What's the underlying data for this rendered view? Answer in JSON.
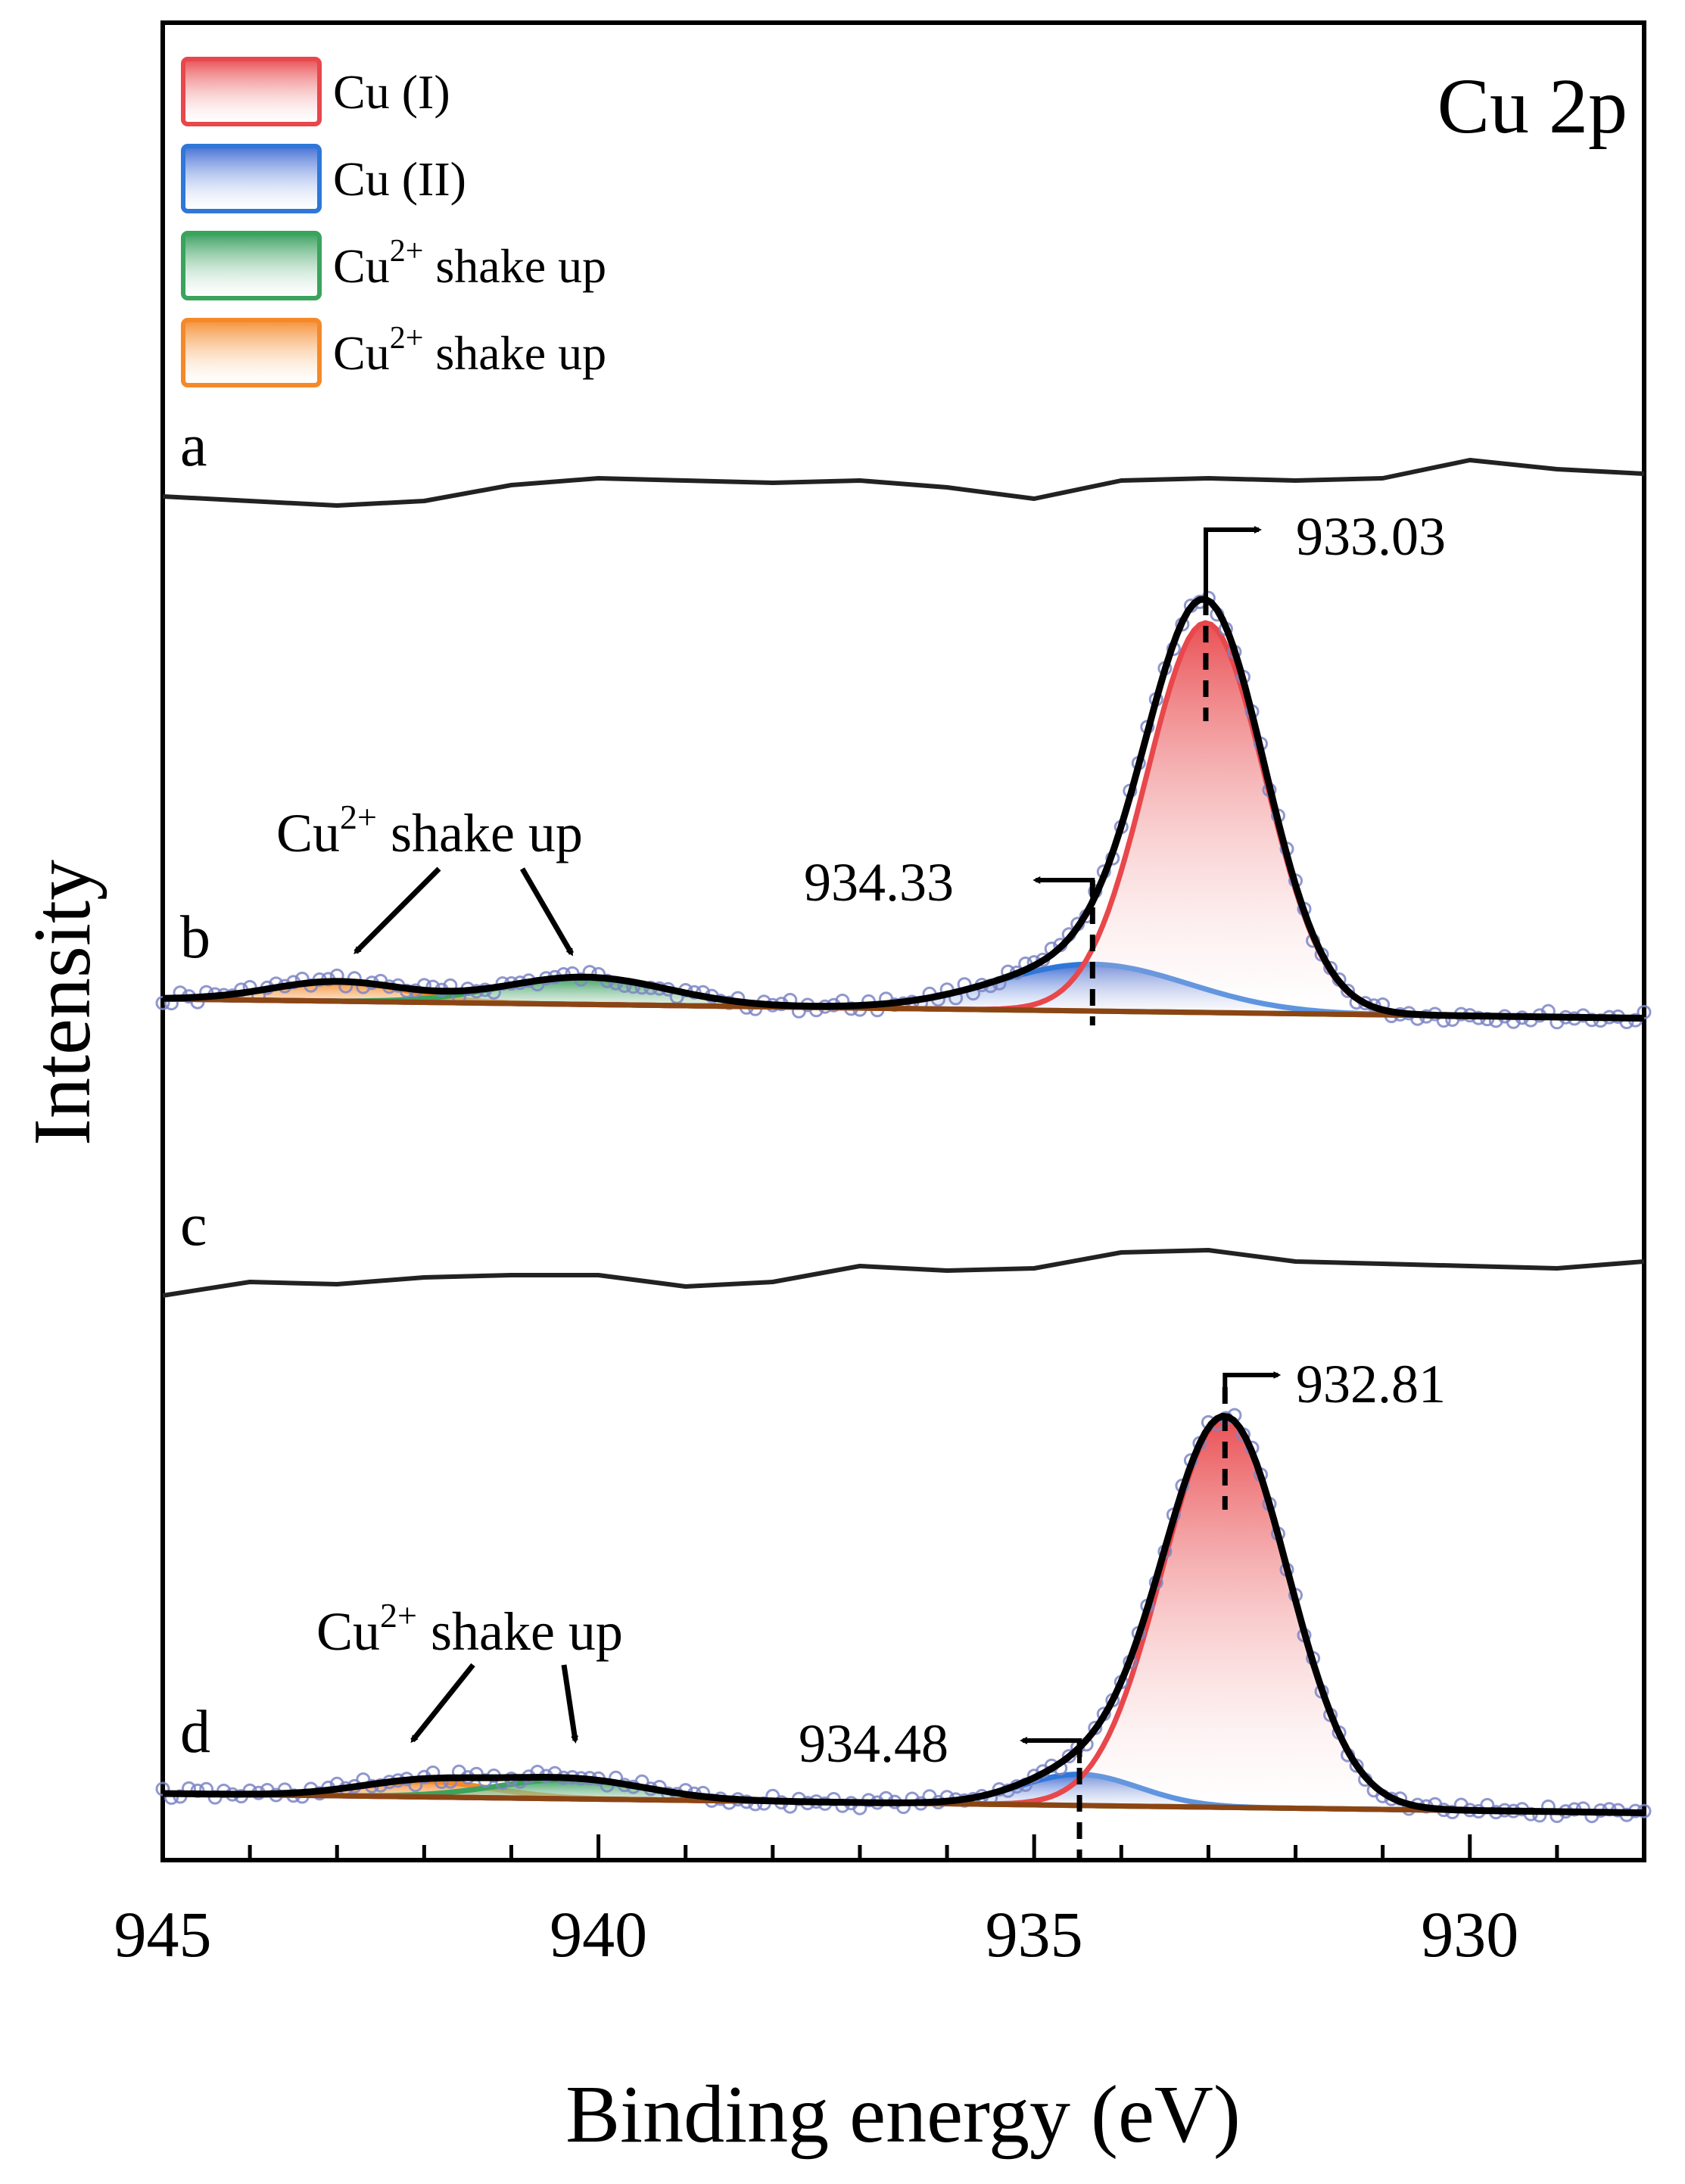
{
  "chart_data": {
    "type": "line",
    "title": "Cu 2p",
    "xlabel": "Binding energy (eV)",
    "ylabel": "Intensity",
    "xlim": [
      945,
      928
    ],
    "x_reversed": true,
    "xticks": [
      945,
      940,
      935,
      930
    ],
    "xtick_labels": [
      "945",
      "940",
      "935",
      "930"
    ],
    "legend": [
      {
        "label": "Cu (I)",
        "sup": "",
        "suffix": "",
        "color": "#e8474b"
      },
      {
        "label": "Cu (II)",
        "sup": "",
        "suffix": "",
        "color": "#2f77d8"
      },
      {
        "label": "Cu",
        "sup": "2+",
        "suffix": " shake up",
        "color": "#3aa35c"
      },
      {
        "label": "Cu",
        "sup": "2+",
        "suffix": " shake up",
        "color": "#f5892a"
      }
    ],
    "series_labels": [
      "a",
      "b",
      "c",
      "d"
    ],
    "flat_traces": [
      {
        "label": "a",
        "x": [
          945,
          943,
          942,
          941,
          940,
          939,
          938,
          937,
          936,
          935,
          934,
          933,
          932,
          931,
          930,
          929,
          928
        ],
        "y": [
          0.2,
          0.0,
          0.1,
          0.45,
          0.6,
          0.55,
          0.5,
          0.55,
          0.4,
          0.15,
          0.55,
          0.6,
          0.55,
          0.6,
          1.0,
          0.8,
          0.7
        ]
      },
      {
        "label": "c",
        "x": [
          945,
          944,
          943,
          942,
          941,
          940,
          939,
          938,
          937,
          936,
          935,
          934,
          933,
          932,
          931,
          930,
          929,
          928
        ],
        "y": [
          0.0,
          0.3,
          0.25,
          0.4,
          0.45,
          0.45,
          0.2,
          0.3,
          0.65,
          0.55,
          0.6,
          0.95,
          1.0,
          0.75,
          0.7,
          0.65,
          0.6,
          0.75
        ]
      }
    ],
    "fitted_spectra": [
      {
        "label": "b",
        "peaks": [
          {
            "component": "Cu (I)",
            "center": 933.03,
            "height": 1.0,
            "width": 1.6
          },
          {
            "component": "Cu (II)",
            "center": 934.33,
            "height": 0.12,
            "width": 2.6
          },
          {
            "component": "Cu2+ shake up",
            "center": 940.15,
            "height": 0.07,
            "width": 2.2
          },
          {
            "component": "Cu2+ shake up",
            "center": 943.0,
            "height": 0.05,
            "width": 1.8
          }
        ],
        "baseline": [
          0.05,
          -0.015
        ],
        "annotations": {
          "main_peak": "933.03",
          "shoulder": "934.33",
          "shake_label": "Cu",
          "shake_sup": "2+",
          "shake_suffix": " shake up"
        }
      },
      {
        "label": "d",
        "peaks": [
          {
            "component": "Cu (I)",
            "center": 932.81,
            "height": 1.0,
            "width": 1.7
          },
          {
            "component": "Cu (II)",
            "center": 934.48,
            "height": 0.08,
            "width": 1.6
          },
          {
            "component": "Cu2+ shake up",
            "center": 940.3,
            "height": 0.05,
            "width": 2.0
          },
          {
            "component": "Cu2+ shake up",
            "center": 942.0,
            "height": 0.04,
            "width": 1.8
          }
        ],
        "baseline": [
          0.05,
          -0.015
        ],
        "annotations": {
          "main_peak": "932.81",
          "shoulder": "934.48",
          "shake_label": "Cu",
          "shake_sup": "2+",
          "shake_suffix": " shake up"
        }
      }
    ],
    "colors": {
      "envelope": "#000000",
      "raw_data": "#7c85c6",
      "baseline": "#8b4513",
      "trace": "#222222"
    }
  }
}
